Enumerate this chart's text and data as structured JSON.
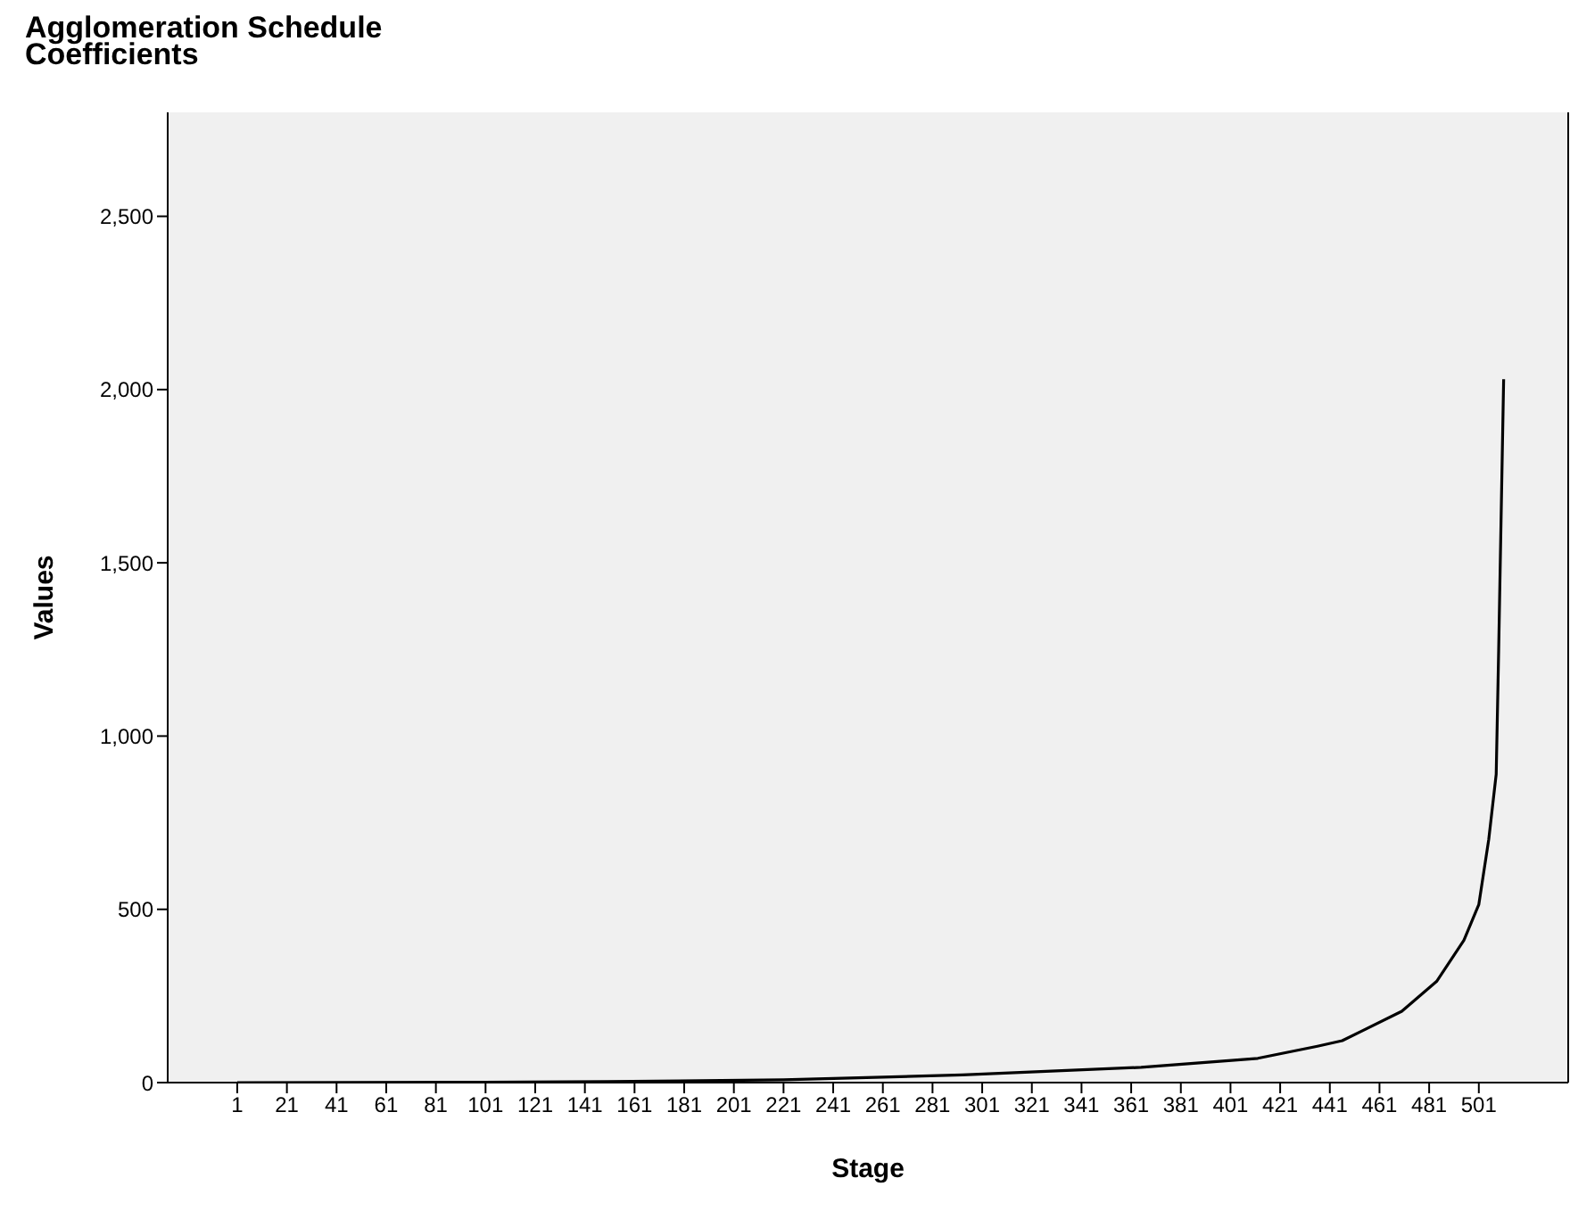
{
  "chart_data": {
    "type": "line",
    "title": "Agglomeration Schedule",
    "subtitle": "Coefficients",
    "xlabel": "Stage",
    "ylabel": "Values",
    "x": [
      1,
      100,
      150,
      221,
      293,
      365,
      412,
      436,
      446,
      470,
      484,
      495,
      501,
      505,
      508,
      509,
      510,
      511
    ],
    "series": [
      {
        "color": "#000000",
        "values": [
          0,
          1,
          3,
          8,
          22,
          44,
          70,
          105,
          121,
          206,
          292,
          411,
          514,
          702,
          890,
          1250,
          1640,
          2030
        ]
      }
    ],
    "xlim": [
      -27,
      537
    ],
    "xticks": [
      1,
      21,
      41,
      61,
      81,
      101,
      121,
      141,
      161,
      181,
      201,
      221,
      241,
      261,
      281,
      301,
      321,
      341,
      361,
      381,
      401,
      421,
      441,
      461,
      481,
      501
    ],
    "ylim": [
      0,
      2800
    ],
    "yticks": [
      0,
      500,
      {
        "value": 1000,
        "label": "1,000"
      },
      {
        "value": 1500,
        "label": "1,500"
      },
      {
        "value": 2000,
        "label": "2,000"
      },
      {
        "value": 2500,
        "label": "2,500"
      }
    ],
    "grid": false,
    "legend": false,
    "marker": "none",
    "line_style": "solid"
  }
}
